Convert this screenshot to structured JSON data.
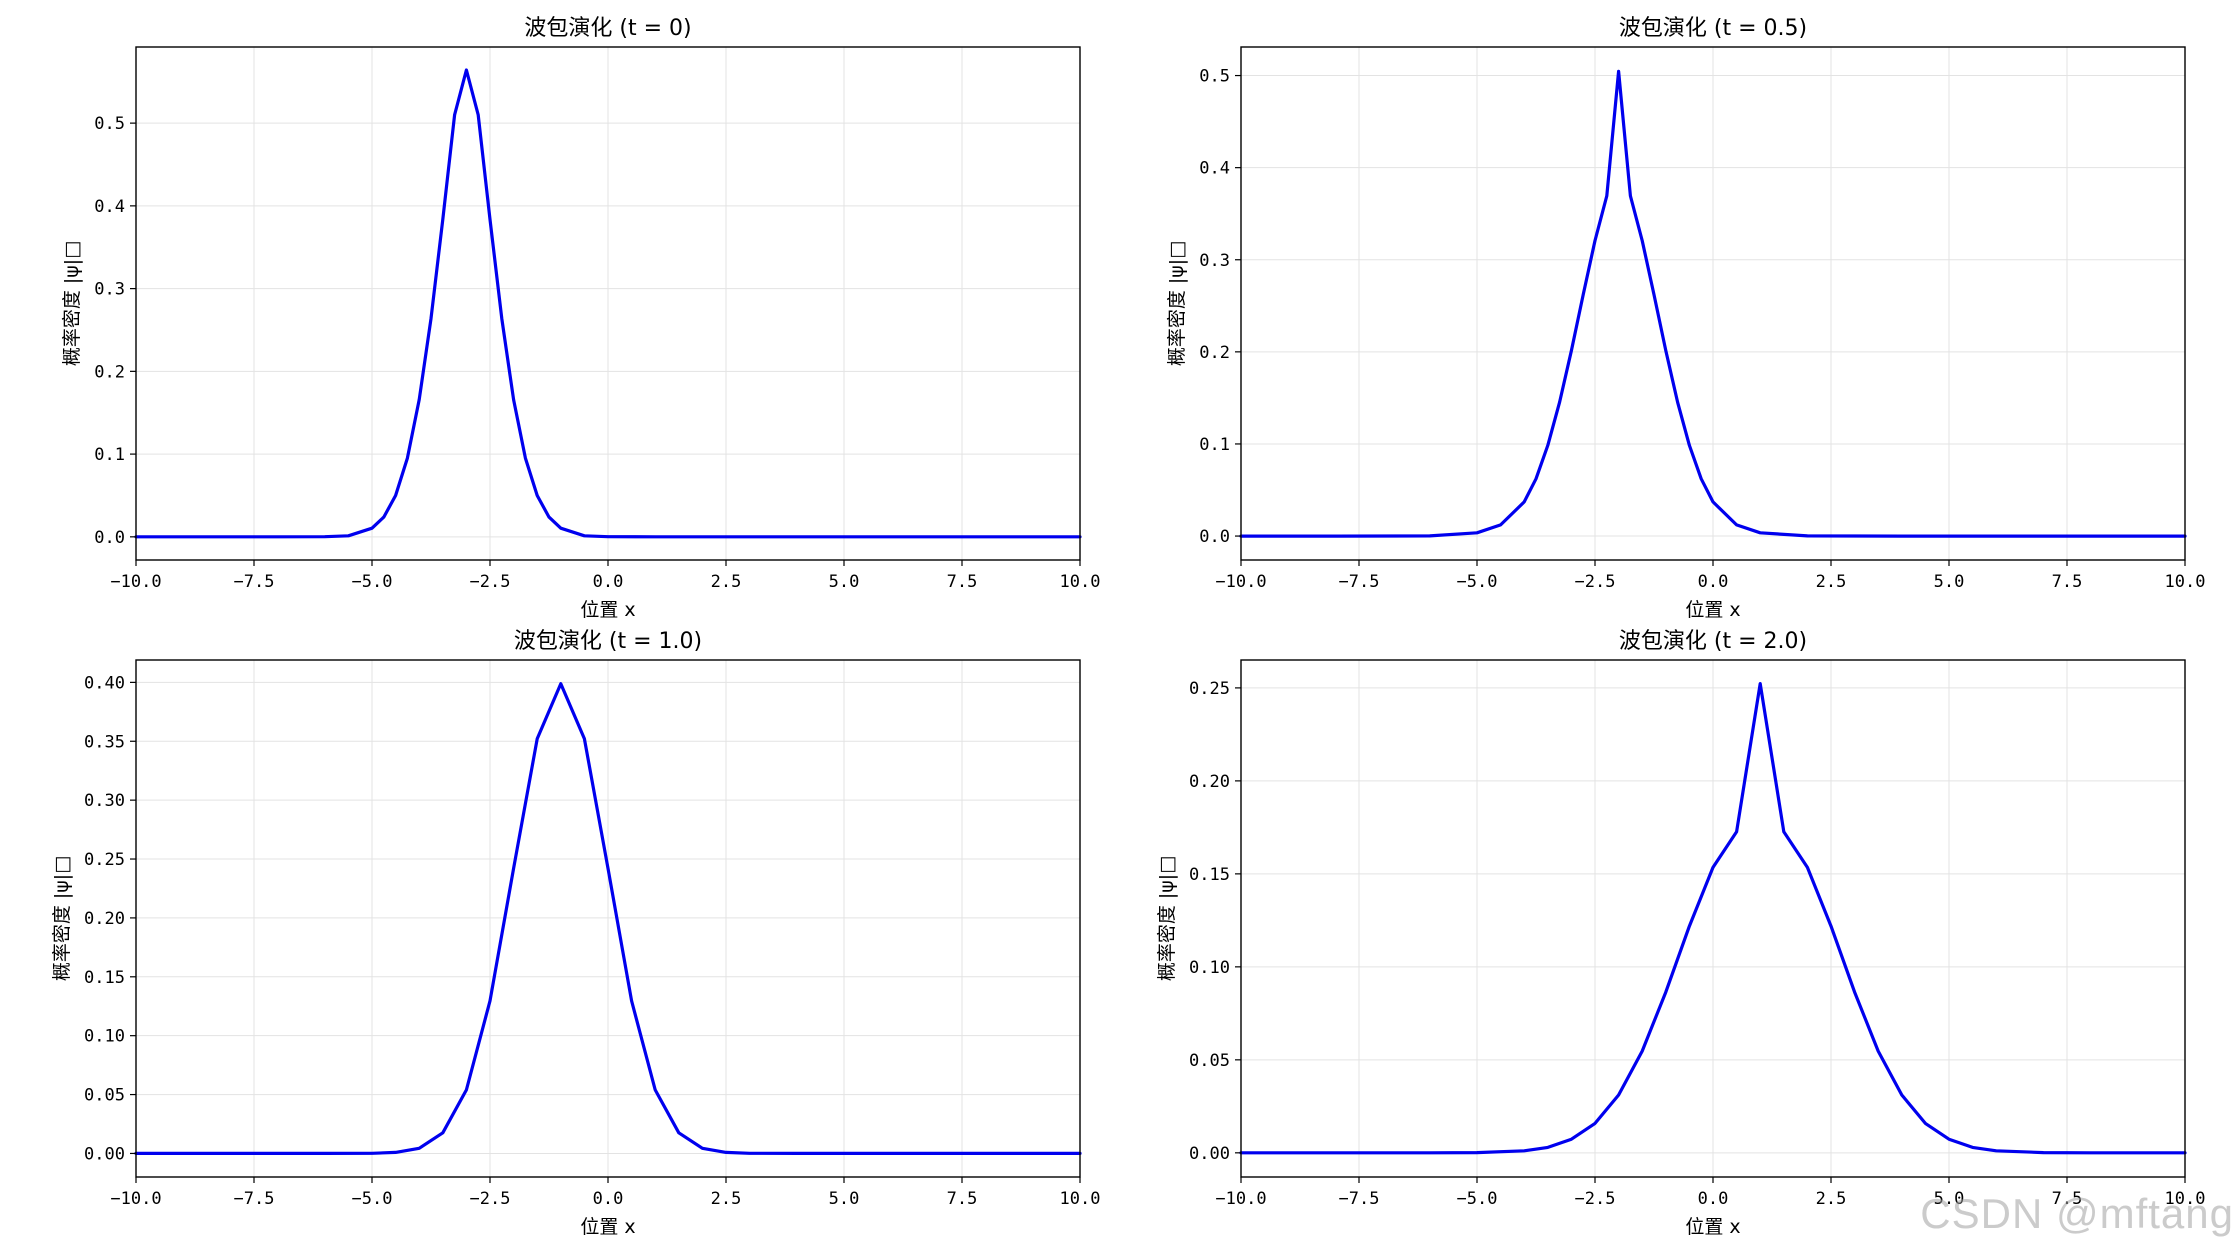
{
  "chart_data": [
    {
      "type": "line",
      "title": "波包演化 (t = 0)",
      "xlabel": "位置 x",
      "ylabel": "概率密度 |ψ|□",
      "xlim": [
        -10,
        10
      ],
      "ylim": [
        -0.028,
        0.592
      ],
      "grid": true,
      "x_ticks": [
        -10,
        -7.5,
        -5,
        -2.5,
        0,
        2.5,
        5,
        7.5,
        10
      ],
      "x_tick_labels": [
        "−10.0",
        "−7.5",
        "−5.0",
        "−2.5",
        "0.0",
        "2.5",
        "5.0",
        "7.5",
        "10.0"
      ],
      "y_ticks": [
        0,
        0.1,
        0.2,
        0.3,
        0.4,
        0.5
      ],
      "y_tick_labels": [
        "0.0",
        "0.1",
        "0.2",
        "0.3",
        "0.4",
        "0.5"
      ],
      "series": [
        {
          "color": "#0000ee",
          "x": [
            -10,
            -9,
            -8,
            -7,
            -6,
            -5.5,
            -5,
            -4.75,
            -4.5,
            -4.25,
            -4,
            -3.75,
            -3.5,
            -3.25,
            -3,
            -2.75,
            -2.5,
            -2.25,
            -2,
            -1.75,
            -1.5,
            -1.25,
            -1,
            -0.5,
            0,
            1,
            2,
            4,
            6,
            8,
            10
          ],
          "y": [
            0,
            0,
            0,
            0,
            0.0002,
            0.0012,
            0.0104,
            0.0239,
            0.0499,
            0.0951,
            0.1657,
            0.2637,
            0.3836,
            0.5099,
            0.5642,
            0.5099,
            0.3836,
            0.2637,
            0.1657,
            0.0951,
            0.0499,
            0.0239,
            0.0104,
            0.0012,
            0.0001,
            0,
            0,
            0,
            0,
            0,
            0
          ]
        }
      ]
    },
    {
      "type": "line",
      "title": "波包演化 (t = 0.5)",
      "xlabel": "位置 x",
      "ylabel": "概率密度 |ψ|□",
      "xlim": [
        -10,
        10
      ],
      "ylim": [
        -0.026,
        0.531
      ],
      "grid": true,
      "x_ticks": [
        -10,
        -7.5,
        -5,
        -2.5,
        0,
        2.5,
        5,
        7.5,
        10
      ],
      "x_tick_labels": [
        "−10.0",
        "−7.5",
        "−5.0",
        "−2.5",
        "0.0",
        "2.5",
        "5.0",
        "7.5",
        "10.0"
      ],
      "y_ticks": [
        0,
        0.1,
        0.2,
        0.3,
        0.4,
        0.5
      ],
      "y_tick_labels": [
        "0.0",
        "0.1",
        "0.2",
        "0.3",
        "0.4",
        "0.5"
      ],
      "series": [
        {
          "color": "#0000ee",
          "x": [
            -10,
            -8,
            -6,
            -5,
            -4.5,
            -4,
            -3.75,
            -3.5,
            -3.25,
            -3,
            -2.75,
            -2.5,
            -2.25,
            -2,
            -1.75,
            -1.5,
            -1.25,
            -1,
            -0.75,
            -0.5,
            -0.25,
            0,
            0.5,
            1,
            2,
            4,
            6,
            8,
            10
          ],
          "y": [
            0,
            0,
            0.0002,
            0.0035,
            0.0121,
            0.0371,
            0.0622,
            0.0984,
            0.1453,
            0.2014,
            0.2621,
            0.3208,
            0.3693,
            0.5046,
            0.3693,
            0.3208,
            0.2621,
            0.2014,
            0.1453,
            0.0984,
            0.0622,
            0.0371,
            0.0121,
            0.0035,
            0.0002,
            0,
            0,
            0,
            0
          ]
        }
      ]
    },
    {
      "type": "line",
      "title": "波包演化 (t = 1.0)",
      "xlabel": "位置 x",
      "ylabel": "概率密度 |ψ|□",
      "xlim": [
        -10,
        10
      ],
      "ylim": [
        -0.02,
        0.419
      ],
      "grid": true,
      "x_ticks": [
        -10,
        -7.5,
        -5,
        -2.5,
        0,
        2.5,
        5,
        7.5,
        10
      ],
      "x_tick_labels": [
        "−10.0",
        "−7.5",
        "−5.0",
        "−2.5",
        "0.0",
        "2.5",
        "5.0",
        "7.5",
        "10.0"
      ],
      "y_ticks": [
        0,
        0.05,
        0.1,
        0.15,
        0.2,
        0.25,
        0.3,
        0.35,
        0.4
      ],
      "y_tick_labels": [
        "0.00",
        "0.05",
        "0.10",
        "0.15",
        "0.20",
        "0.25",
        "0.30",
        "0.35",
        "0.40"
      ],
      "series": [
        {
          "color": "#0000ee",
          "x": [
            -10,
            -8,
            -6,
            -5,
            -4.5,
            -4,
            -3.5,
            -3,
            -2.5,
            -2,
            -1.5,
            -1,
            -0.5,
            0,
            0.5,
            1,
            1.5,
            2,
            2.5,
            3,
            4,
            6,
            8,
            10
          ],
          "y": [
            0,
            0,
            0,
            0.0001,
            0.0009,
            0.0044,
            0.0175,
            0.054,
            0.1295,
            0.242,
            0.3521,
            0.3989,
            0.3521,
            0.242,
            0.1295,
            0.054,
            0.0175,
            0.0044,
            0.0009,
            0.0001,
            0,
            0,
            0,
            0
          ]
        }
      ]
    },
    {
      "type": "line",
      "title": "波包演化 (t = 2.0)",
      "xlabel": "位置 x",
      "ylabel": "概率密度 |ψ|□",
      "xlim": [
        -10,
        10
      ],
      "ylim": [
        -0.013,
        0.265
      ],
      "grid": true,
      "x_ticks": [
        -10,
        -7.5,
        -5,
        -2.5,
        0,
        2.5,
        5,
        7.5,
        10
      ],
      "x_tick_labels": [
        "−10.0",
        "−7.5",
        "−5.0",
        "−2.5",
        "0.0",
        "2.5",
        "5.0",
        "7.5",
        "10.0"
      ],
      "y_ticks": [
        0,
        0.05,
        0.1,
        0.15,
        0.2,
        0.25
      ],
      "y_tick_labels": [
        "0.00",
        "0.05",
        "0.10",
        "0.15",
        "0.20",
        "0.25"
      ],
      "series": [
        {
          "color": "#0000ee",
          "x": [
            -10,
            -8,
            -6,
            -5,
            -4,
            -3.5,
            -3,
            -2.5,
            -2,
            -1.5,
            -1,
            -0.5,
            0,
            0.5,
            1,
            1.5,
            2,
            2.5,
            3,
            3.5,
            4,
            4.5,
            5,
            5.5,
            6,
            7,
            8,
            10
          ],
          "y": [
            0,
            0,
            0,
            0.0001,
            0.0011,
            0.0029,
            0.0073,
            0.0158,
            0.0311,
            0.0547,
            0.0864,
            0.1219,
            0.1535,
            0.1727,
            0.2523,
            0.1727,
            0.1535,
            0.1219,
            0.0864,
            0.0547,
            0.0311,
            0.0158,
            0.0073,
            0.0029,
            0.0011,
            0.0001,
            0,
            0
          ]
        }
      ]
    }
  ],
  "watermark": "CSDN @mftang"
}
